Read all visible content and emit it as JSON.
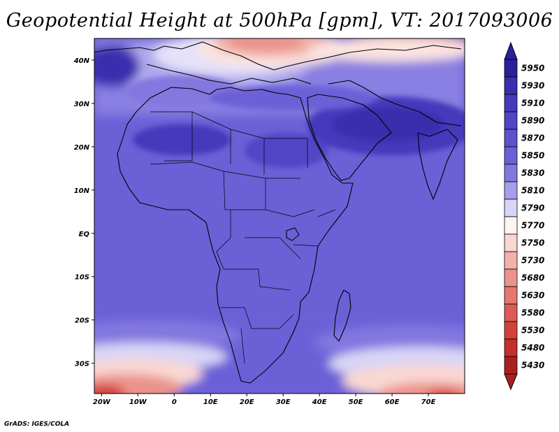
{
  "title": "Geopotential Height at 500hPa [gpm], VT: 2017093006",
  "credit": "GrADS: IGES/COLA",
  "map": {
    "lon_range": [
      -22,
      80
    ],
    "lat_range": [
      -37,
      45
    ],
    "lon_ticks": [
      {
        "value": -20,
        "label": "20W"
      },
      {
        "value": -10,
        "label": "10W"
      },
      {
        "value": 0,
        "label": "0"
      },
      {
        "value": 10,
        "label": "10E"
      },
      {
        "value": 20,
        "label": "20E"
      },
      {
        "value": 30,
        "label": "30E"
      },
      {
        "value": 40,
        "label": "40E"
      },
      {
        "value": 50,
        "label": "50E"
      },
      {
        "value": 60,
        "label": "60E"
      },
      {
        "value": 70,
        "label": "70E"
      }
    ],
    "lat_ticks": [
      {
        "value": 40,
        "label": "40N"
      },
      {
        "value": 30,
        "label": "30N"
      },
      {
        "value": 20,
        "label": "20N"
      },
      {
        "value": 10,
        "label": "10N"
      },
      {
        "value": 0,
        "label": "EQ"
      },
      {
        "value": -10,
        "label": "10S"
      },
      {
        "value": -20,
        "label": "20S"
      },
      {
        "value": -30,
        "label": "30S"
      }
    ],
    "colorbar": [
      {
        "label": "5950",
        "color": "#2b1f9a"
      },
      {
        "label": "5930",
        "color": "#3a2eae"
      },
      {
        "label": "5910",
        "color": "#4639bc"
      },
      {
        "label": "5890",
        "color": "#5244c6"
      },
      {
        "label": "5870",
        "color": "#5e52cf"
      },
      {
        "label": "5850",
        "color": "#6c60d7"
      },
      {
        "label": "5830",
        "color": "#8377e0"
      },
      {
        "label": "5810",
        "color": "#a69ee9"
      },
      {
        "label": "5790",
        "color": "#d8d5f6"
      },
      {
        "label": "5770",
        "color": "#fff4f2"
      },
      {
        "label": "5750",
        "color": "#f9d7d2"
      },
      {
        "label": "5730",
        "color": "#f2b2aa"
      },
      {
        "label": "5680",
        "color": "#eb938a"
      },
      {
        "label": "5630",
        "color": "#e47870"
      },
      {
        "label": "5580",
        "color": "#dc5c55"
      },
      {
        "label": "5530",
        "color": "#d2423d"
      },
      {
        "label": "5480",
        "color": "#c42f2c"
      },
      {
        "label": "5430",
        "color": "#ac1f1f"
      }
    ]
  }
}
